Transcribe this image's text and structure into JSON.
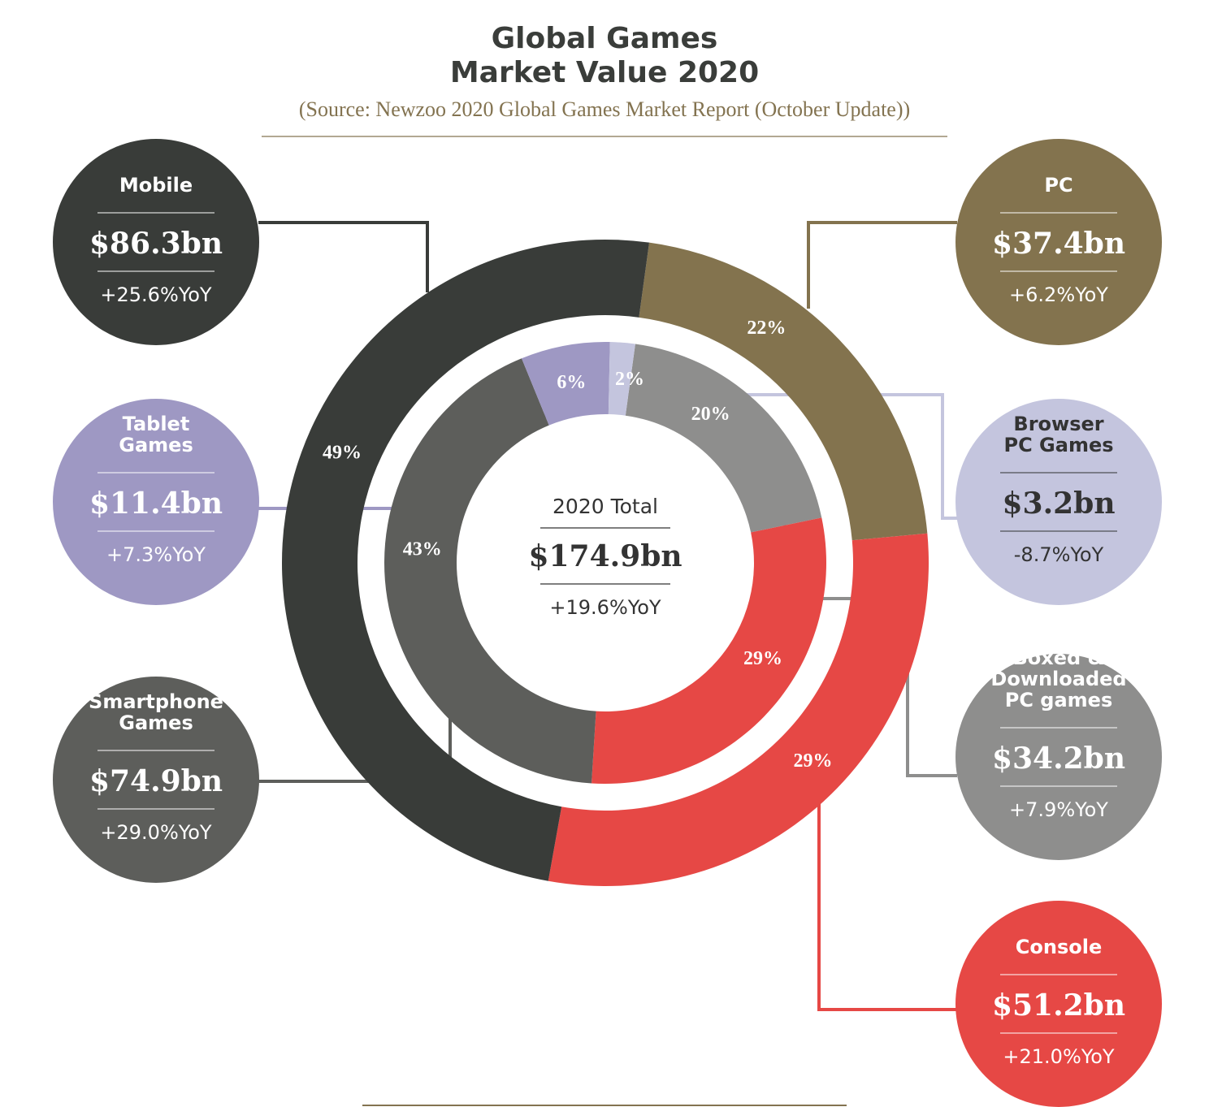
{
  "chart_data": {
    "type": "donut",
    "title": "Global Games\nMarket Value 2020",
    "subtitle": "(Source: Newzoo 2020 Global Games Market Report (October Update))",
    "center": {
      "label": "2020 Total",
      "value": "$174.9bn",
      "yoy": "+19.6%YoY"
    },
    "outer_ring": [
      {
        "name": "Mobile",
        "value": 86.3,
        "value_label": "$86.3bn",
        "yoy": "+25.6%YoY",
        "percent_label": "49%",
        "color": "#393c39"
      },
      {
        "name": "PC",
        "value": 37.4,
        "value_label": "$37.4bn",
        "yoy": "+6.2%YoY",
        "percent_label": "22%",
        "color": "#83734e"
      },
      {
        "name": "Console",
        "value": 51.2,
        "value_label": "$51.2bn",
        "yoy": "+21.0%YoY",
        "percent_label": "29%",
        "color": "#e64845"
      }
    ],
    "inner_ring": [
      {
        "name": "Smartphone Games",
        "value": 74.9,
        "value_label": "$74.9bn",
        "yoy": "+29.0%YoY",
        "percent_label": "43%",
        "color": "#5d5e5b"
      },
      {
        "name": "Tablet Games",
        "value": 11.4,
        "value_label": "$11.4bn",
        "yoy": "+7.3%YoY",
        "percent_label": "6%",
        "color": "#9e98c3"
      },
      {
        "name": "Browser PC Games",
        "value": 3.2,
        "value_label": "$3.2bn",
        "yoy": "-8.7%YoY",
        "percent_label": "2%",
        "color": "#c4c5de"
      },
      {
        "name": "Boxed & Downloaded PC games",
        "value": 34.2,
        "value_label": "$34.2bn",
        "yoy": "+7.9%YoY",
        "percent_label": "20%",
        "color": "#8e8e8d"
      },
      {
        "name": "Console",
        "value": 51.2,
        "value_label": "$51.2bn",
        "yoy": "+21.0%YoY",
        "percent_label": "29%",
        "color": "#e64845"
      }
    ],
    "text_colors": {
      "light": "#ffffff",
      "dark": "#333333"
    },
    "rule_color": "#837350"
  }
}
